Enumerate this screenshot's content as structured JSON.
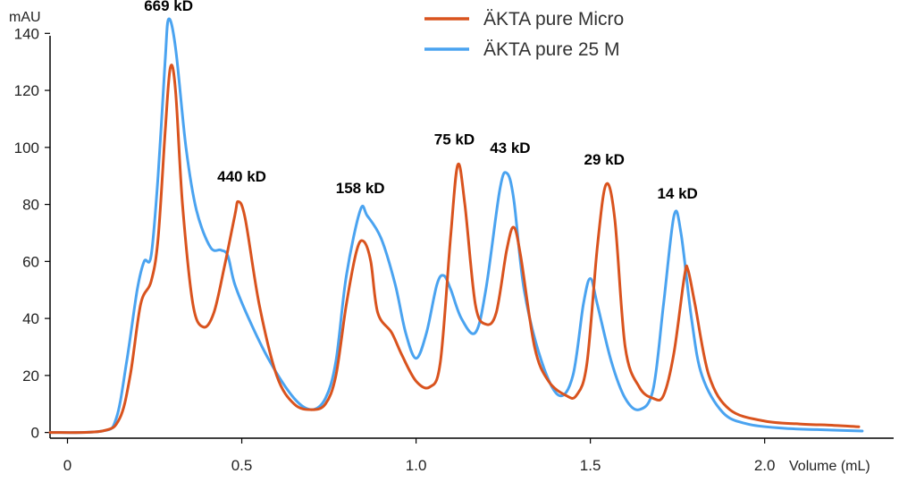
{
  "chart_data": {
    "type": "line",
    "title": "",
    "xlabel": "Volume (mL)",
    "ylabel": "mAU",
    "xlim": [
      -0.05,
      2.37
    ],
    "ylim": [
      -2,
      147
    ],
    "x_ticks": [
      "0",
      "0.5",
      "1.0",
      "1.5",
      "2.0"
    ],
    "y_ticks": [
      "0",
      "20",
      "40",
      "60",
      "80",
      "100",
      "120",
      "140"
    ],
    "legend_position": "top-right",
    "grid": false,
    "peak_labels": [
      {
        "text": "669 kD",
        "x": 0.29,
        "y": 148
      },
      {
        "text": "440 kD",
        "x": 0.5,
        "y": 88
      },
      {
        "text": "158 kD",
        "x": 0.84,
        "y": 84
      },
      {
        "text": "75 kD",
        "x": 1.11,
        "y": 101
      },
      {
        "text": "43 kD",
        "x": 1.27,
        "y": 98
      },
      {
        "text": "29 kD",
        "x": 1.54,
        "y": 94
      },
      {
        "text": "14 kD",
        "x": 1.75,
        "y": 82
      }
    ],
    "series": [
      {
        "name": "ÄKTA pure Micro",
        "color": "#d9531e",
        "points": [
          [
            -0.05,
            0
          ],
          [
            0.1,
            0.5
          ],
          [
            0.15,
            5
          ],
          [
            0.18,
            20
          ],
          [
            0.21,
            45
          ],
          [
            0.24,
            53
          ],
          [
            0.26,
            68
          ],
          [
            0.28,
            105
          ],
          [
            0.295,
            128
          ],
          [
            0.31,
            120
          ],
          [
            0.33,
            80
          ],
          [
            0.36,
            45
          ],
          [
            0.39,
            37
          ],
          [
            0.42,
            42
          ],
          [
            0.45,
            58
          ],
          [
            0.48,
            76
          ],
          [
            0.49,
            81
          ],
          [
            0.51,
            75
          ],
          [
            0.55,
            45
          ],
          [
            0.6,
            20
          ],
          [
            0.65,
            10
          ],
          [
            0.7,
            8
          ],
          [
            0.74,
            10
          ],
          [
            0.77,
            20
          ],
          [
            0.8,
            45
          ],
          [
            0.83,
            64
          ],
          [
            0.85,
            67
          ],
          [
            0.87,
            60
          ],
          [
            0.89,
            42
          ],
          [
            0.93,
            35
          ],
          [
            0.96,
            27
          ],
          [
            1.0,
            18
          ],
          [
            1.04,
            16
          ],
          [
            1.07,
            25
          ],
          [
            1.1,
            70
          ],
          [
            1.12,
            94
          ],
          [
            1.14,
            80
          ],
          [
            1.17,
            45
          ],
          [
            1.2,
            38
          ],
          [
            1.23,
            42
          ],
          [
            1.26,
            64
          ],
          [
            1.28,
            72
          ],
          [
            1.3,
            62
          ],
          [
            1.34,
            30
          ],
          [
            1.38,
            18
          ],
          [
            1.43,
            13
          ],
          [
            1.46,
            13
          ],
          [
            1.49,
            24
          ],
          [
            1.52,
            65
          ],
          [
            1.545,
            87
          ],
          [
            1.57,
            75
          ],
          [
            1.6,
            30
          ],
          [
            1.64,
            16
          ],
          [
            1.68,
            12
          ],
          [
            1.71,
            13
          ],
          [
            1.74,
            28
          ],
          [
            1.77,
            55
          ],
          [
            1.78,
            57
          ],
          [
            1.8,
            45
          ],
          [
            1.84,
            20
          ],
          [
            1.9,
            8
          ],
          [
            2.0,
            4
          ],
          [
            2.1,
            3
          ],
          [
            2.2,
            2.5
          ],
          [
            2.27,
            2
          ]
        ]
      },
      {
        "name": "ÄKTA pure 25 M",
        "color": "#4aa3f0",
        "points": [
          [
            -0.05,
            0
          ],
          [
            0.1,
            0.5
          ],
          [
            0.14,
            5
          ],
          [
            0.17,
            25
          ],
          [
            0.2,
            50
          ],
          [
            0.22,
            60
          ],
          [
            0.24,
            62
          ],
          [
            0.26,
            90
          ],
          [
            0.28,
            130
          ],
          [
            0.29,
            145
          ],
          [
            0.31,
            135
          ],
          [
            0.34,
            100
          ],
          [
            0.37,
            78
          ],
          [
            0.41,
            65
          ],
          [
            0.44,
            64
          ],
          [
            0.46,
            62
          ],
          [
            0.48,
            52
          ],
          [
            0.52,
            40
          ],
          [
            0.58,
            25
          ],
          [
            0.65,
            12
          ],
          [
            0.7,
            8
          ],
          [
            0.74,
            12
          ],
          [
            0.77,
            25
          ],
          [
            0.8,
            55
          ],
          [
            0.84,
            78
          ],
          [
            0.86,
            76
          ],
          [
            0.9,
            68
          ],
          [
            0.94,
            52
          ],
          [
            0.97,
            35
          ],
          [
            1.0,
            26
          ],
          [
            1.03,
            35
          ],
          [
            1.06,
            52
          ],
          [
            1.08,
            55
          ],
          [
            1.1,
            50
          ],
          [
            1.13,
            40
          ],
          [
            1.17,
            35
          ],
          [
            1.2,
            50
          ],
          [
            1.24,
            85
          ],
          [
            1.26,
            91
          ],
          [
            1.28,
            82
          ],
          [
            1.31,
            50
          ],
          [
            1.36,
            25
          ],
          [
            1.41,
            13
          ],
          [
            1.45,
            20
          ],
          [
            1.48,
            45
          ],
          [
            1.5,
            54
          ],
          [
            1.52,
            45
          ],
          [
            1.56,
            25
          ],
          [
            1.6,
            12
          ],
          [
            1.64,
            8
          ],
          [
            1.68,
            15
          ],
          [
            1.71,
            45
          ],
          [
            1.74,
            76
          ],
          [
            1.76,
            70
          ],
          [
            1.79,
            40
          ],
          [
            1.82,
            20
          ],
          [
            1.88,
            7
          ],
          [
            1.95,
            3
          ],
          [
            2.05,
            1.5
          ],
          [
            2.15,
            1
          ],
          [
            2.28,
            0.5
          ]
        ]
      }
    ]
  }
}
